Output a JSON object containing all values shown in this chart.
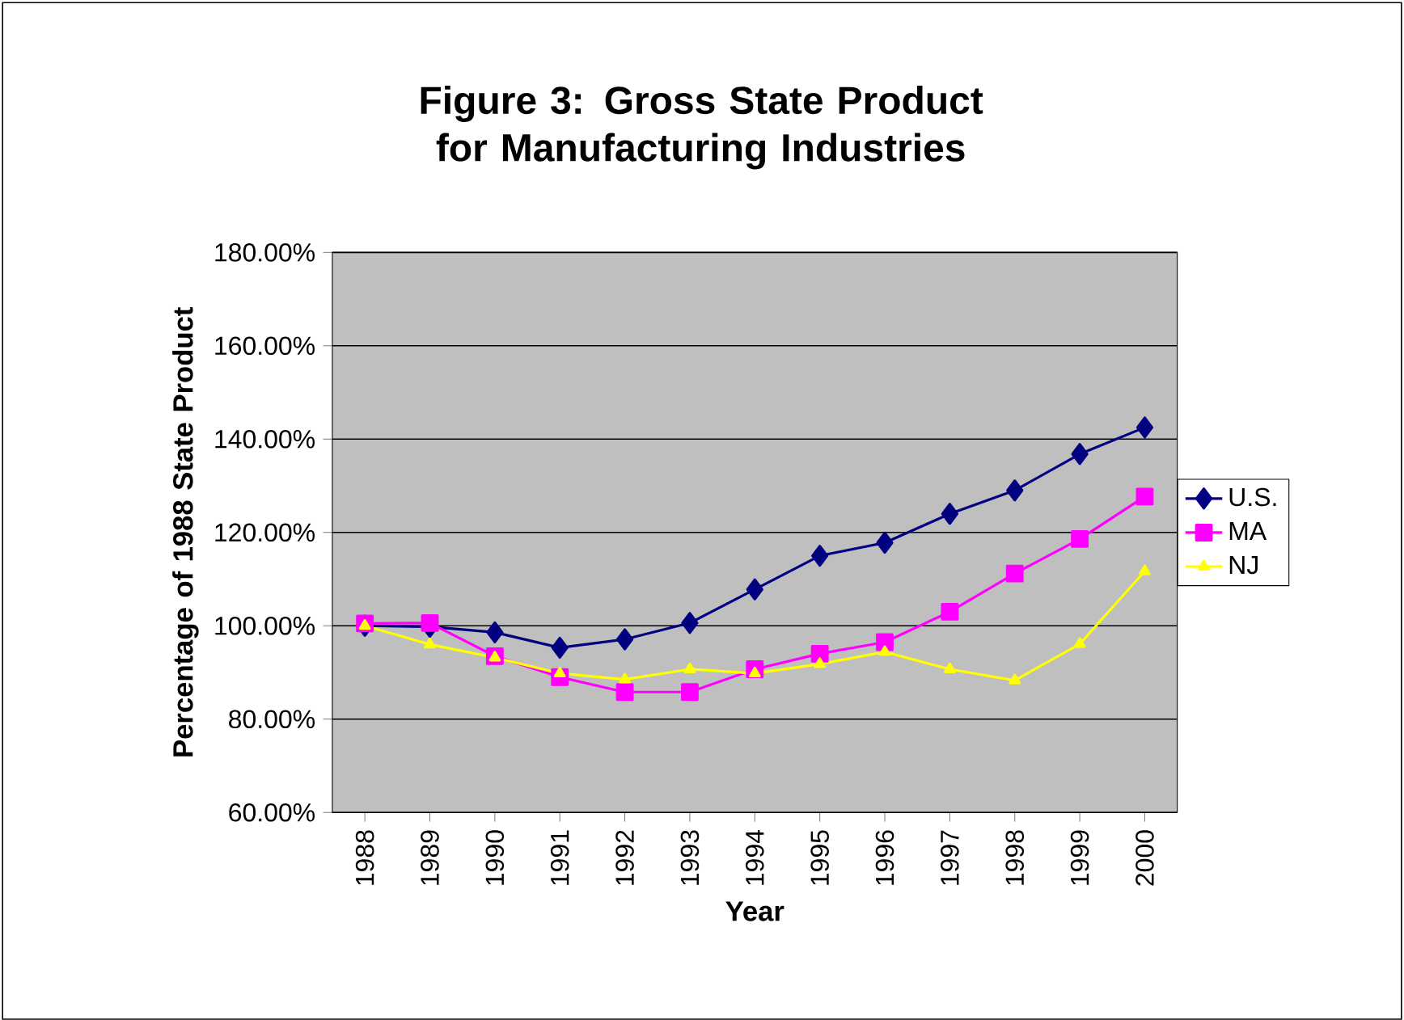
{
  "chart_data": {
    "type": "line",
    "title": "Figure 3: Gross State Product for Manufacturing Industries",
    "xlabel": "Year",
    "ylabel": "Percentage of 1988 State Product",
    "categories": [
      "1988",
      "1989",
      "1990",
      "1991",
      "1992",
      "1993",
      "1994",
      "1995",
      "1996",
      "1997",
      "1998",
      "1999",
      "2000"
    ],
    "series": [
      {
        "name": "U.S.",
        "color": "#000080",
        "marker": "diamond",
        "values": [
          100,
          99.8,
          98.6,
          95.3,
          97.1,
          100.6,
          107.8,
          115,
          117.8,
          124,
          129,
          136.8,
          142.5
        ]
      },
      {
        "name": "MA",
        "color": "#ff00ff",
        "marker": "square",
        "values": [
          100.5,
          100.6,
          93.5,
          89,
          85.8,
          85.8,
          90.7,
          94,
          96.5,
          103,
          111.2,
          118.6,
          127.7
        ]
      },
      {
        "name": "NJ",
        "color": "#ffff00",
        "marker": "triangle",
        "values": [
          100,
          96,
          93.2,
          89.8,
          88.5,
          90.7,
          89.8,
          91.8,
          94.4,
          90.7,
          88.3,
          96.1,
          111.7
        ]
      }
    ],
    "ylim": [
      60,
      180
    ],
    "yticks": [
      {
        "value": 60,
        "label": "60.00%"
      },
      {
        "value": 80,
        "label": "80.00%"
      },
      {
        "value": 100,
        "label": "100.00%"
      },
      {
        "value": 120,
        "label": "120.00%"
      },
      {
        "value": 140,
        "label": "140.00%"
      },
      {
        "value": 160,
        "label": "160.00%"
      },
      {
        "value": 180,
        "label": "180.00%"
      }
    ],
    "grid": "y",
    "legend": "right",
    "line_style": "solid"
  }
}
